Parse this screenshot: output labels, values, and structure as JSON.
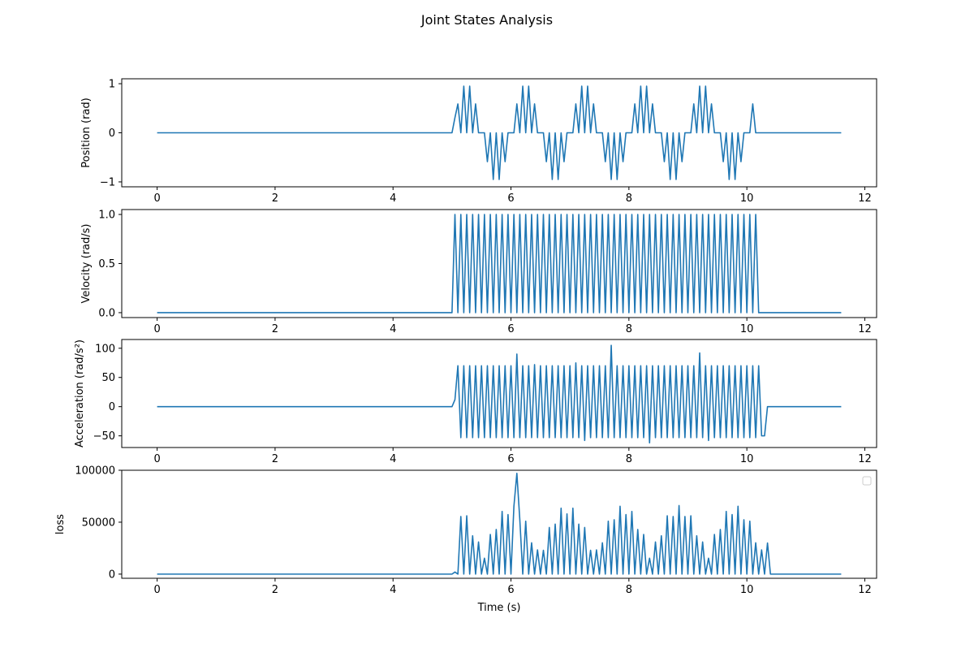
{
  "figure": {
    "title": "Joint States Analysis"
  },
  "colors": {
    "line": "#1f77b4",
    "axes": "#000000",
    "background": "#ffffff"
  },
  "chart_data": [
    {
      "type": "line",
      "title": "",
      "xlabel": "",
      "ylabel": "Position (rad)",
      "xlim": [
        -0.6,
        12.2
      ],
      "ylim": [
        -1.1,
        1.1
      ],
      "xticks": [
        0,
        2,
        4,
        6,
        8,
        10,
        12
      ],
      "xtick_labels": [
        "0",
        "2",
        "4",
        "6",
        "8",
        "10",
        "12"
      ],
      "yticks": [
        -1,
        0,
        1
      ],
      "ytick_labels": [
        "−1",
        "0",
        "1"
      ],
      "legend": null,
      "series": [
        {
          "signal": "position",
          "t_start": 0.0,
          "t_active_start": 5.0,
          "t_active_end": 10.15,
          "t_end": 11.6,
          "sample_interval": 0.05,
          "period": 1.0,
          "amplitude": 1.0,
          "pattern": "sin(2*pi*t) with intermittent zero samples while active; 0 elsewhere"
        }
      ]
    },
    {
      "type": "line",
      "title": "",
      "xlabel": "",
      "ylabel": "Velocity (rad/s)",
      "xlim": [
        -0.6,
        12.2
      ],
      "ylim": [
        -0.05,
        1.05
      ],
      "xticks": [
        0,
        2,
        4,
        6,
        8,
        10,
        12
      ],
      "xtick_labels": [
        "0",
        "2",
        "4",
        "6",
        "8",
        "10",
        "12"
      ],
      "yticks": [
        0.0,
        0.5,
        1.0
      ],
      "ytick_labels": [
        "0.0",
        "0.5",
        "1.0"
      ],
      "legend": null,
      "series": [
        {
          "signal": "velocity",
          "t_start": 0.0,
          "t_active_start": 5.05,
          "t_active_end": 10.15,
          "t_end": 11.6,
          "sample_interval": 0.05,
          "pulse_high": 1.0,
          "pulse_low": 0.0,
          "pattern": "square pulses alternating 1 and 0 while active; 0 elsewhere"
        }
      ]
    },
    {
      "type": "line",
      "title": "",
      "xlabel": "",
      "ylabel": "Acceleration (rad/s²)",
      "xlim": [
        -0.6,
        12.2
      ],
      "ylim": [
        -70,
        115
      ],
      "xticks": [
        0,
        2,
        4,
        6,
        8,
        10,
        12
      ],
      "xtick_labels": [
        "0",
        "2",
        "4",
        "6",
        "8",
        "10",
        "12"
      ],
      "yticks": [
        -50,
        0,
        50,
        100
      ],
      "ytick_labels": [
        "−50",
        "0",
        "50",
        "100"
      ],
      "legend": null,
      "series": [
        {
          "signal": "acceleration",
          "t_start": 0.0,
          "t_active_start": 5.05,
          "t_active_end": 10.2,
          "t_end": 11.6,
          "sample_interval": 0.05,
          "typical_peak": 70,
          "typical_trough": -53,
          "max_peak": 105,
          "min_trough": -62,
          "pattern": "alternating positive and negative spikes while active; 0 elsewhere"
        }
      ]
    },
    {
      "type": "line",
      "title": "",
      "xlabel": "Time (s)",
      "ylabel": "loss",
      "xlim": [
        -0.6,
        12.2
      ],
      "ylim": [
        -4000,
        100000
      ],
      "xticks": [
        0,
        2,
        4,
        6,
        8,
        10,
        12
      ],
      "xtick_labels": [
        "0",
        "2",
        "4",
        "6",
        "8",
        "10",
        "12"
      ],
      "yticks": [
        0,
        50000,
        100000
      ],
      "ytick_labels": [
        "0",
        "50000",
        "100000"
      ],
      "legend": "top-right (empty)",
      "series": [
        {
          "signal": "loss",
          "t_start": 0.0,
          "t_active_start": 5.05,
          "t_active_end": 10.3,
          "t_end": 11.6,
          "sample_interval": 0.05,
          "max_peak": 97000,
          "pattern": "oscillating spikes with beating envelope while active; 0 elsewhere"
        }
      ]
    }
  ]
}
